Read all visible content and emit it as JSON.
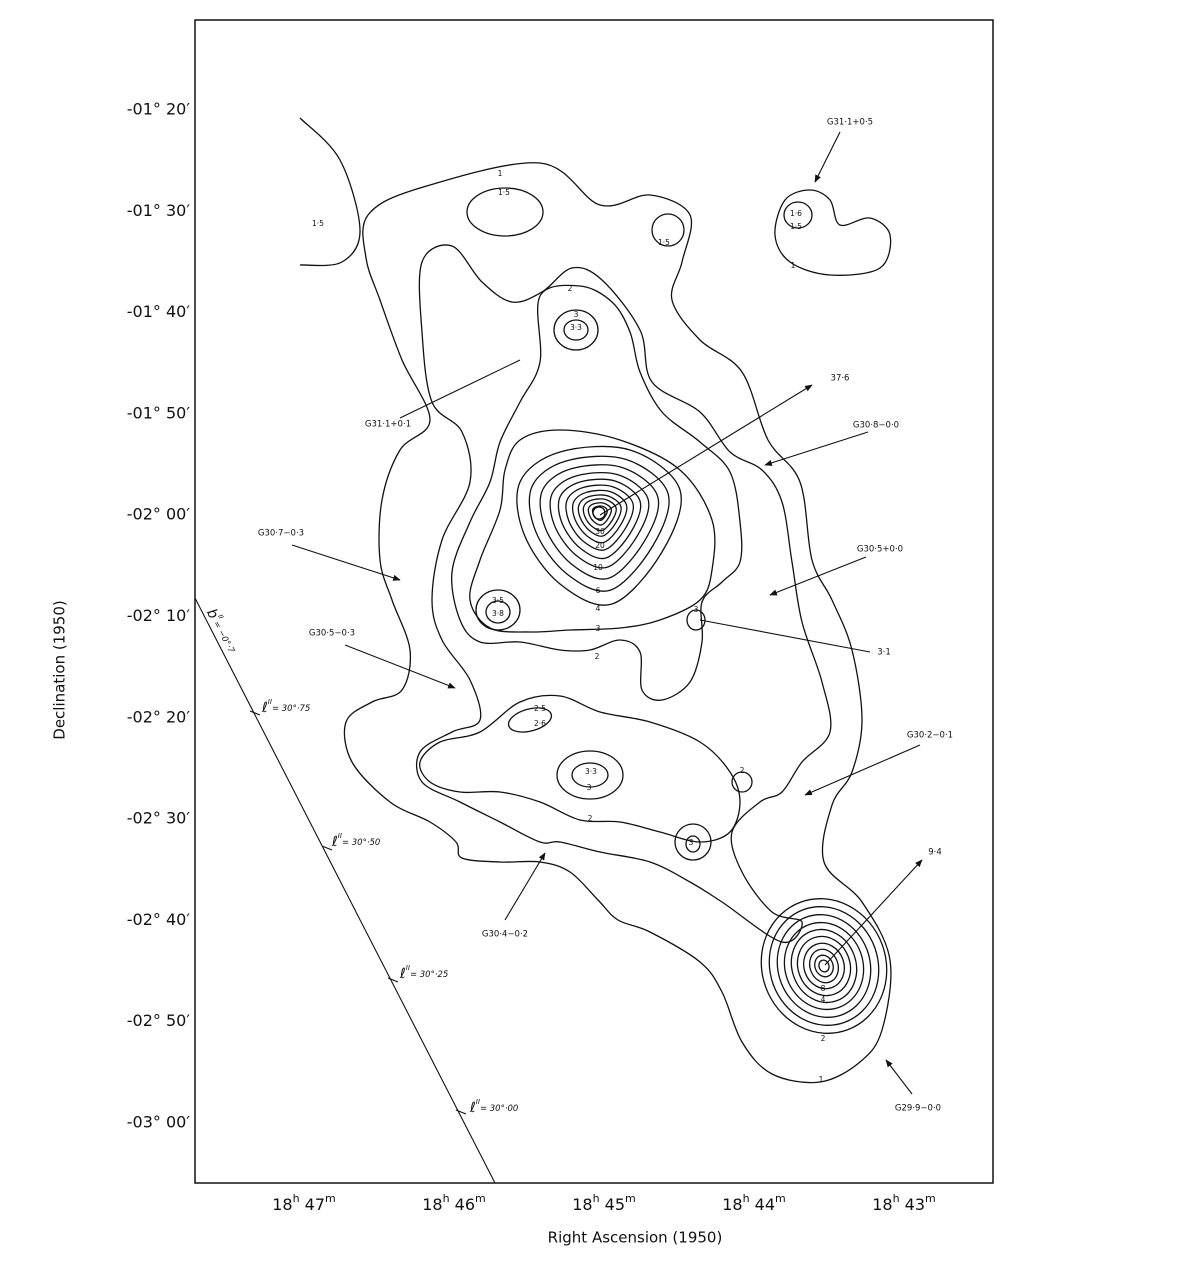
{
  "axes": {
    "y_title": "Declination  (1950)",
    "x_title": "Right Ascension  (1950)",
    "y_ticks": [
      "-01° 20′",
      "-01° 30′",
      "-01° 40′",
      "-01° 50′",
      "-02° 00′",
      "-02° 10′",
      "-02° 20′",
      "-02° 30′",
      "-02° 40′",
      "-02° 50′",
      "-03° 00′"
    ],
    "x_ticks": [
      {
        "hours": "18",
        "hours_unit": "h",
        "minutes": " 47",
        "minutes_unit": "m"
      },
      {
        "hours": "18",
        "hours_unit": "h",
        "minutes": " 46",
        "minutes_unit": "m"
      },
      {
        "hours": "18",
        "hours_unit": "h",
        "minutes": " 45",
        "minutes_unit": "m"
      },
      {
        "hours": "18",
        "hours_unit": "h",
        "minutes": " 44",
        "minutes_unit": "m"
      },
      {
        "hours": "18",
        "hours_unit": "h",
        "minutes": " 43",
        "minutes_unit": "m"
      }
    ]
  },
  "annotations": [
    "G31·1+0·5",
    "G31·1+0·1",
    "37·6",
    "G30·8−0·0",
    "G30·7−0·3",
    "G30·5+0·0",
    "G30·5−0·3",
    "3·1",
    "G30·2−0·1",
    "9·4",
    "G30·4−0·2",
    "G29·9−0·0"
  ],
  "galactic": {
    "latitude": {
      "symbol": "b",
      "sup": "II",
      "text": "= −0°·7"
    },
    "longitudes": [
      {
        "symbol": "ℓ",
        "sup": "II",
        "text": "= 30°·75"
      },
      {
        "symbol": "ℓ",
        "sup": "II",
        "text": "= 30°·50"
      },
      {
        "symbol": "ℓ",
        "sup": "II",
        "text": "= 30°·25"
      },
      {
        "symbol": "ℓ",
        "sup": "II",
        "text": "= 30°·00"
      }
    ]
  },
  "contour_labels": [
    "1",
    "1·5",
    "1·5",
    "1·5",
    "1·6",
    "1·5",
    "1",
    "2",
    "3",
    "3·3",
    "30",
    "20",
    "10",
    "6",
    "4",
    "3",
    "2",
    "3·5",
    "3·8",
    "3",
    "2·5",
    "2·6",
    "3·3",
    "3",
    "2",
    "2",
    "3",
    "8",
    "4",
    "2",
    "1"
  ]
}
